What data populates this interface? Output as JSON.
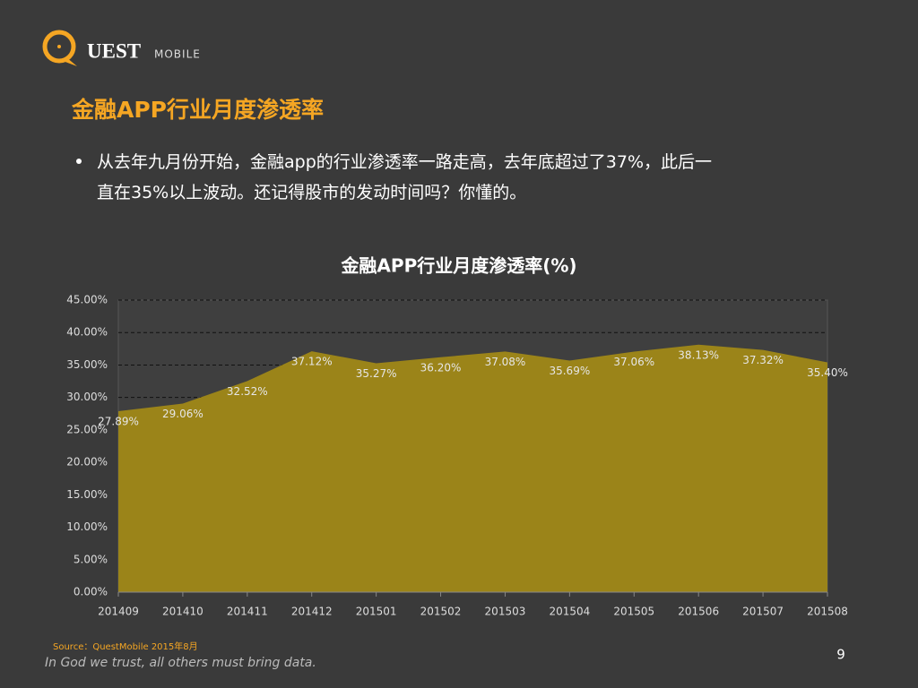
{
  "slide": {
    "logo_main": "UEST",
    "logo_sub": "MOBILE",
    "heading": "金融APP行业月度渗透率",
    "bullet_lines": [
      "从去年九月份开始，金融app的行业渗透率一路走高，去年底超过了37%，此后一",
      "直在35%以上波动。还记得股市的发动时间吗？你懂的。"
    ],
    "source": "Source：QuestMobile   2015年8月",
    "motto": "In God we trust, all others must bring data.",
    "page_number": "9"
  },
  "chart_data": {
    "type": "area",
    "title": "金融APP行业月度渗透率(%)",
    "categories": [
      "201409",
      "201410",
      "201411",
      "201412",
      "201501",
      "201502",
      "201503",
      "201504",
      "201505",
      "201506",
      "201507",
      "201508"
    ],
    "series": [
      {
        "name": "金融APP行业月度渗透率",
        "color": "#9b8419",
        "values": [
          27.89,
          29.06,
          32.52,
          37.12,
          35.27,
          36.2,
          37.08,
          35.69,
          37.06,
          38.13,
          37.32,
          35.4
        ],
        "value_labels": [
          "27.89%",
          "29.06%",
          "32.52%",
          "37.12%",
          "35.27%",
          "36.20%",
          "37.08%",
          "35.69%",
          "37.06%",
          "38.13%",
          "37.32%",
          "35.40%"
        ]
      }
    ],
    "ylim": [
      0,
      45
    ],
    "yticks": [
      {
        "value": 0,
        "label": "0.00%"
      },
      {
        "value": 5,
        "label": "5.00%"
      },
      {
        "value": 10,
        "label": "10.00%"
      },
      {
        "value": 15,
        "label": "15.00%"
      },
      {
        "value": 20,
        "label": "20.00%"
      },
      {
        "value": 25,
        "label": "25.00%"
      },
      {
        "value": 30,
        "label": "30.00%"
      },
      {
        "value": 35,
        "label": "35.00%"
      },
      {
        "value": 40,
        "label": "40.00%"
      },
      {
        "value": 45,
        "label": "45.00%"
      }
    ],
    "grid": true
  }
}
